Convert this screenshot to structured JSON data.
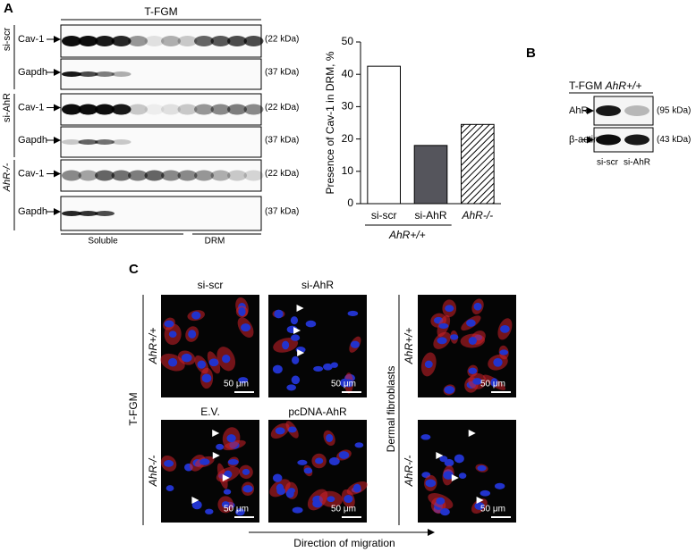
{
  "panel_a": {
    "label": "A",
    "header": "T-FGM",
    "groups": [
      {
        "name": "si-scr",
        "rows": [
          {
            "protein": "Cav-1",
            "size": "(22 kDa)"
          },
          {
            "protein": "Gapdh",
            "size": "(37 kDa)"
          }
        ]
      },
      {
        "name": "si-AhR",
        "rows": [
          {
            "protein": "Cav-1",
            "size": "(22 kDa)"
          },
          {
            "protein": "Gapdh",
            "size": "(37 kDa)"
          }
        ]
      },
      {
        "name": "AhR-/-",
        "rows": [
          {
            "protein": "Cav-1",
            "size": "(22 kDa)"
          },
          {
            "protein": "Gapdh",
            "size": "(37 kDa)"
          }
        ]
      }
    ],
    "fractions": [
      "Soluble",
      "DRM"
    ]
  },
  "chart_data": {
    "type": "bar",
    "y_label": "Presence of Cav-1 in DRM, %",
    "categories": [
      "si-scr",
      "si-AhR",
      "AhR-/-"
    ],
    "values": [
      42.5,
      18,
      24.5
    ],
    "colors": [
      "#ffffff",
      "#55555c",
      "#ffffff"
    ],
    "hatched": [
      false,
      false,
      true
    ],
    "group_label": "AhR+/+",
    "ylim": [
      0,
      50
    ],
    "yticks": [
      0,
      10,
      20,
      30,
      40,
      50
    ]
  },
  "panel_b": {
    "label": "B",
    "header": "T-FGM",
    "header_genotype": "AhR+/+",
    "rows": [
      {
        "protein": "AhR",
        "size": "(95 kDa)"
      },
      {
        "protein": "β-actin",
        "size": "(43 kDa)"
      }
    ],
    "lanes": [
      "si-scr",
      "si-AhR"
    ]
  },
  "panel_c": {
    "label": "C",
    "top_columns": [
      "si-scr",
      "si-AhR"
    ],
    "bottom_columns": [
      "E.V.",
      "pcDNA-AhR"
    ],
    "genotypes": [
      "AhR+/+",
      "AhR-/-"
    ],
    "left_group": "T-FGM",
    "right_group": "Dermal fibroblasts",
    "scale_bar": "50 μm",
    "direction": "Direction of migration"
  }
}
